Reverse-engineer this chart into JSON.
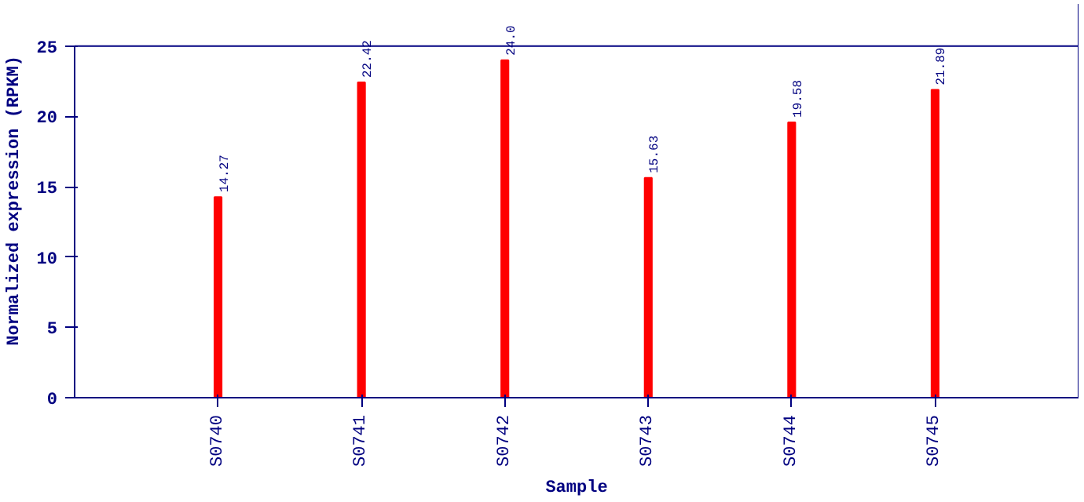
{
  "chart_data": {
    "type": "bar",
    "xlabel": "Sample",
    "ylabel": "Normalized expression (RPKM)",
    "categories": [
      "S0740",
      "S0741",
      "S0742",
      "S0743",
      "S0744",
      "S0745"
    ],
    "values": [
      14.27,
      22.42,
      24.0,
      15.63,
      19.58,
      21.89
    ],
    "value_labels": [
      "14.27",
      "22.42",
      "24.0",
      "15.63",
      "19.58",
      "21.89"
    ],
    "color": "#ff0000",
    "ylim": [
      0,
      25
    ],
    "yticks": [
      0,
      5,
      10,
      15,
      20,
      25
    ],
    "grid": false
  }
}
